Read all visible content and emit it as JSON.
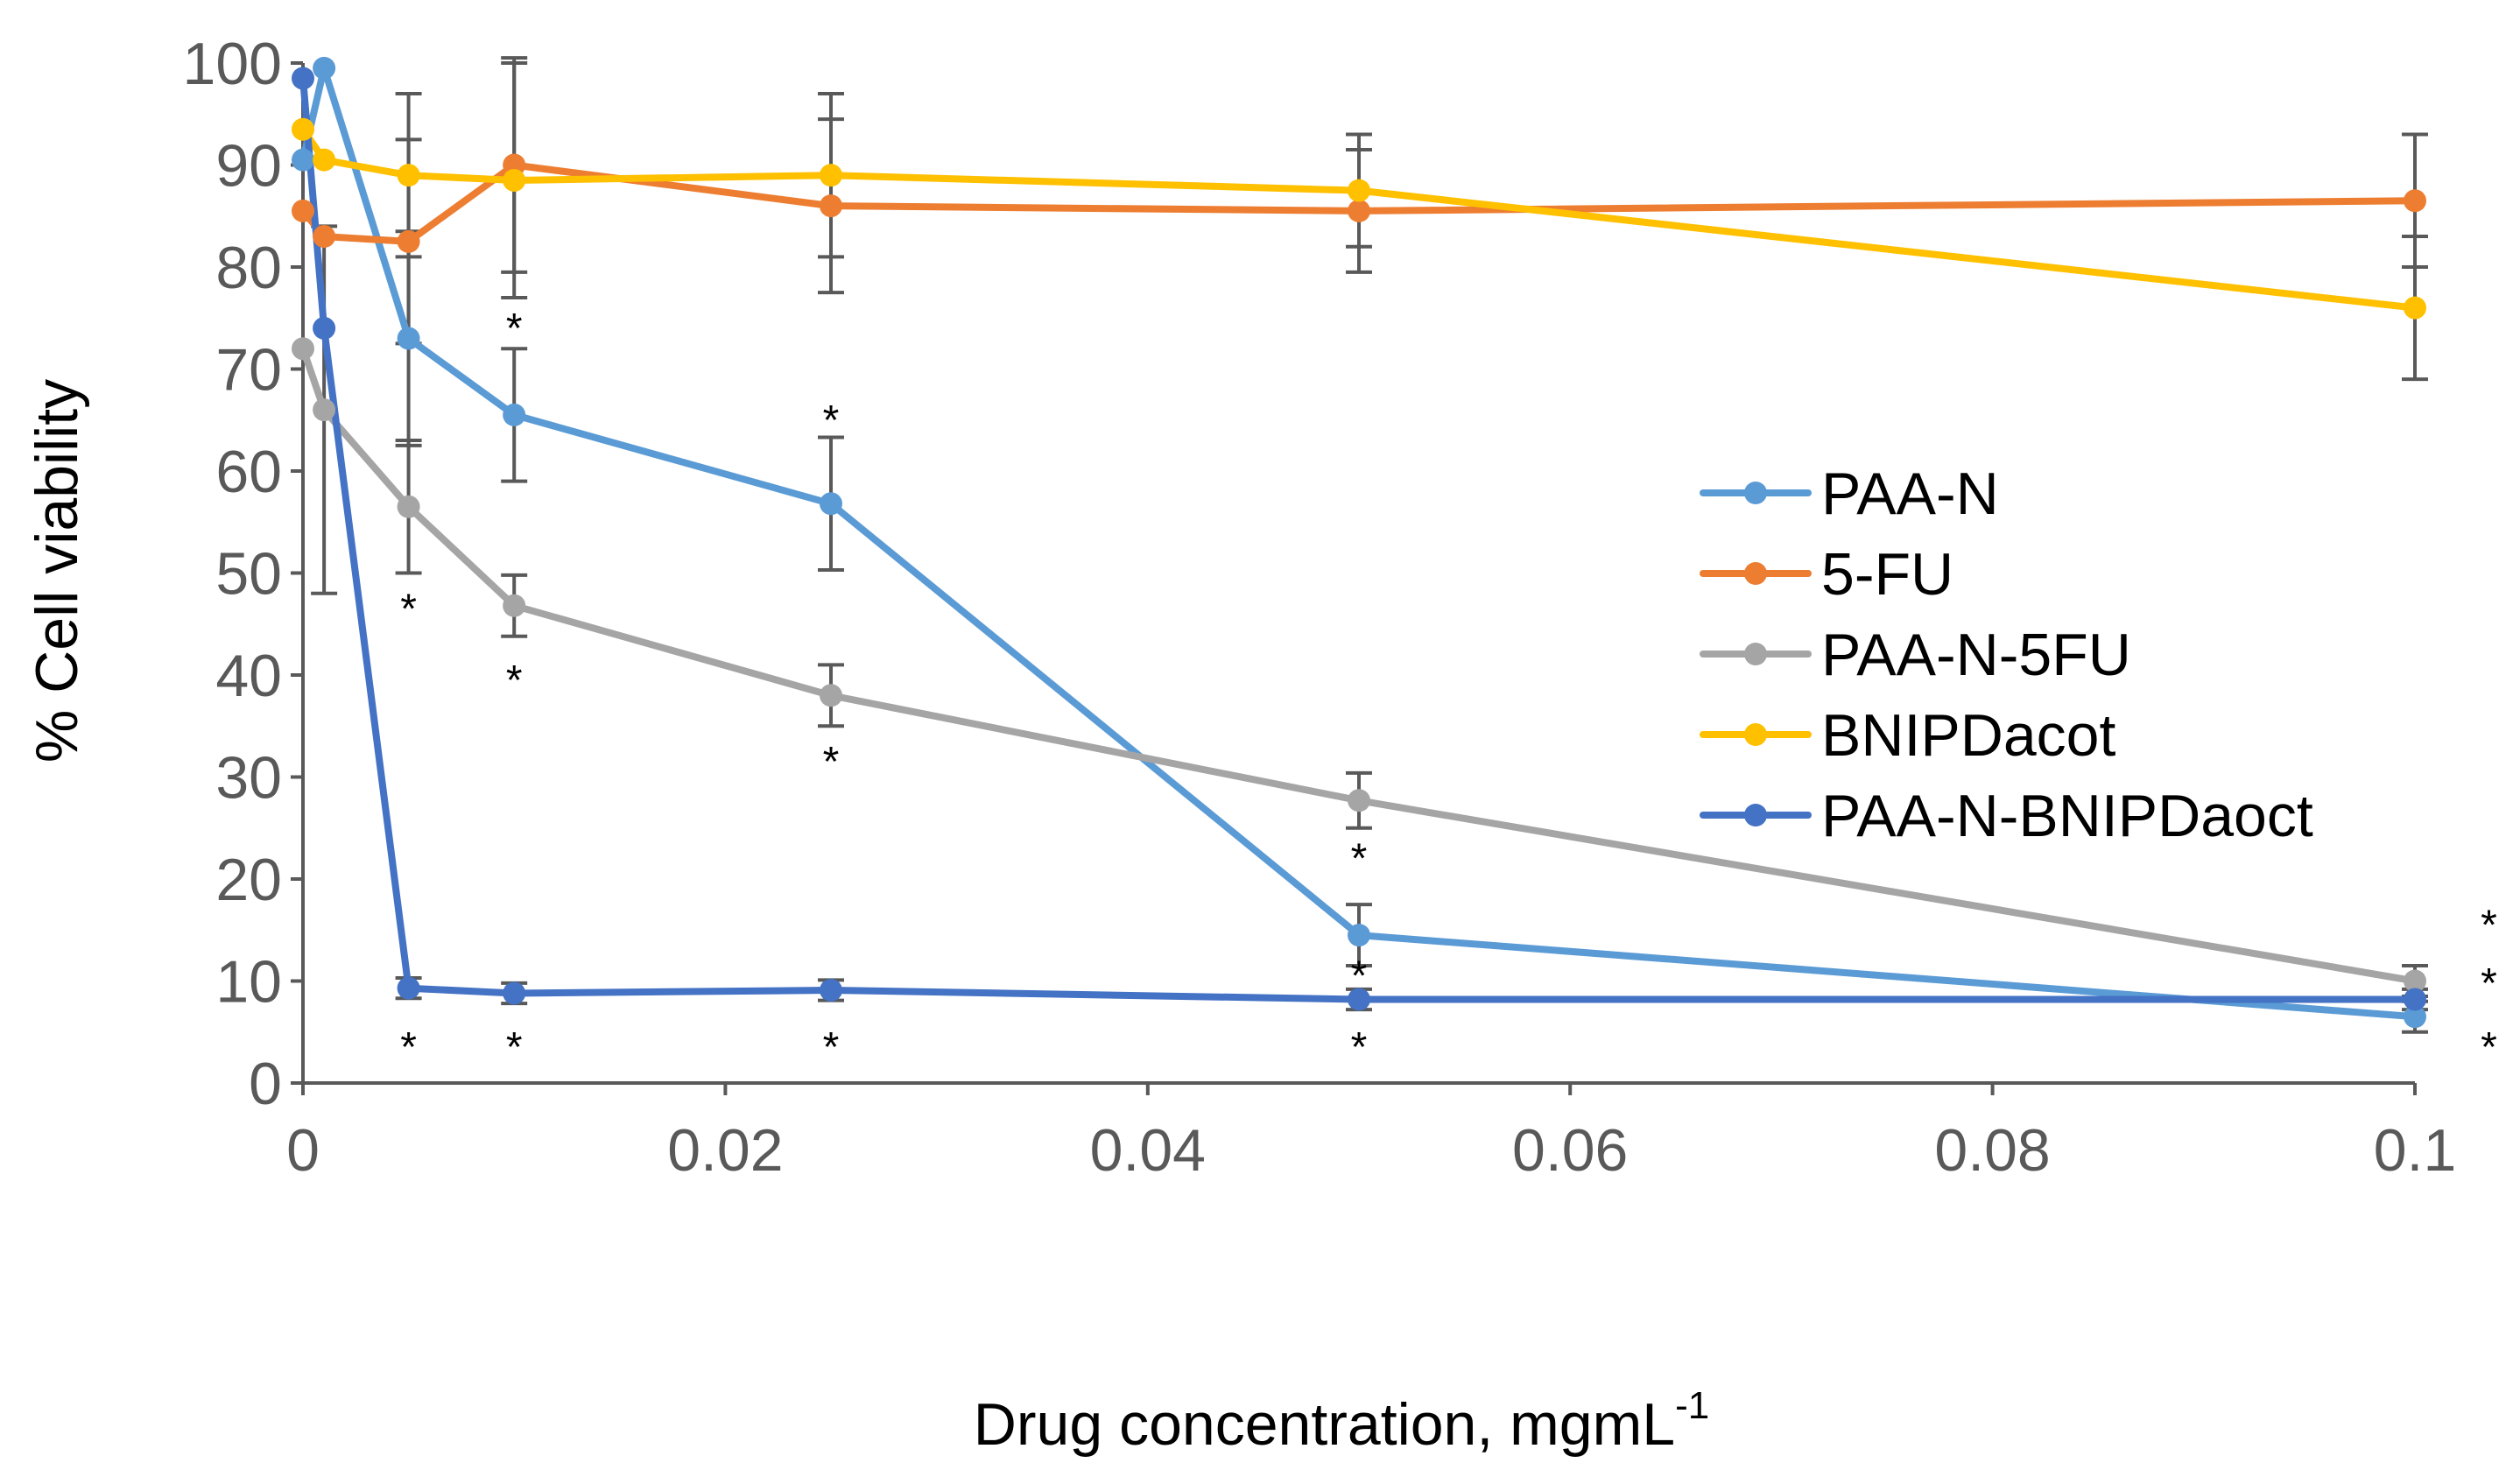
{
  "chart_data": {
    "type": "line",
    "title": "",
    "xlabel": "Drug concentration, mgmL",
    "xlabel_superscript": "-1",
    "ylabel": "% Cell viability",
    "xlim": [
      0,
      0.1
    ],
    "ylim": [
      0,
      100
    ],
    "x_ticks": [
      0,
      0.02,
      0.04,
      0.06,
      0.08,
      0.1
    ],
    "x_tick_labels": [
      "0",
      "0.02",
      "0.04",
      "0.06",
      "0.08",
      "0.1"
    ],
    "y_ticks": [
      0,
      10,
      20,
      30,
      40,
      50,
      60,
      70,
      80,
      90,
      100
    ],
    "y_tick_labels": [
      "0",
      "10",
      "20",
      "30",
      "40",
      "50",
      "60",
      "70",
      "80",
      "90",
      "100"
    ],
    "grid": false,
    "legend_position": "center-right",
    "series": [
      {
        "name": "PAA-N",
        "color": "#5B9BD5",
        "x": [
          0,
          0.001,
          0.005,
          0.01,
          0.025,
          0.05,
          0.1
        ],
        "values": [
          90.5,
          99.5,
          73,
          65.5,
          56.8,
          14.5,
          6.5
        ],
        "errors": [
          null,
          null,
          10.5,
          6.5,
          6.5,
          3,
          1.5
        ]
      },
      {
        "name": "5-FU",
        "color": "#ED7D31",
        "x": [
          0,
          0.001,
          0.005,
          0.01,
          0.025,
          0.05,
          0.1
        ],
        "values": [
          85.5,
          83,
          82.5,
          90,
          86,
          85.5,
          86.5
        ],
        "errors": [
          null,
          null,
          10,
          10.5,
          8.5,
          6,
          6.5
        ]
      },
      {
        "name": "PAA-N-5FU",
        "color": "#A5A5A5",
        "x": [
          0,
          0.001,
          0.005,
          0.01,
          0.025,
          0.05,
          0.1
        ],
        "values": [
          72,
          66,
          56.5,
          46.8,
          38,
          27.7,
          10
        ],
        "errors": [
          null,
          18,
          6.5,
          3,
          3,
          2.7,
          1.5
        ]
      },
      {
        "name": "BNIPDacot",
        "color": "#FFC000",
        "x": [
          0,
          0.001,
          0.005,
          0.01,
          0.025,
          0.05,
          0.1
        ],
        "values": [
          93.5,
          90.5,
          89,
          88.5,
          89,
          87.5,
          76
        ],
        "errors": [
          null,
          null,
          8,
          11.5,
          8,
          5.5,
          7
        ]
      },
      {
        "name": "PAA-N-BNIPDaoct",
        "color": "#4472C4",
        "x": [
          0,
          0.001,
          0.005,
          0.01,
          0.025,
          0.05,
          0.1
        ],
        "values": [
          98.5,
          74,
          9.3,
          8.8,
          9.1,
          8.2,
          8.2
        ],
        "errors": [
          null,
          null,
          1,
          1,
          1,
          1,
          1
        ]
      }
    ],
    "significance_marks": [
      {
        "x": 0.005,
        "y": 46.5,
        "label": "*"
      },
      {
        "x": 0.005,
        "y": 3.5,
        "label": "*"
      },
      {
        "x": 0.01,
        "y": 74,
        "label": "*"
      },
      {
        "x": 0.01,
        "y": 39.5,
        "label": "*"
      },
      {
        "x": 0.01,
        "y": 3.5,
        "label": "*"
      },
      {
        "x": 0.025,
        "y": 65,
        "label": "*"
      },
      {
        "x": 0.025,
        "y": 31.5,
        "label": "*"
      },
      {
        "x": 0.025,
        "y": 3.5,
        "label": "*"
      },
      {
        "x": 0.05,
        "y": 22,
        "label": "*"
      },
      {
        "x": 0.05,
        "y": 10.5,
        "label": "*"
      },
      {
        "x": 0.05,
        "y": 3.5,
        "label": "*"
      },
      {
        "x": 0.1035,
        "y": 15.5,
        "label": "*"
      },
      {
        "x": 0.1035,
        "y": 9.8,
        "label": "*"
      },
      {
        "x": 0.1035,
        "y": 3.5,
        "label": "*"
      }
    ]
  }
}
